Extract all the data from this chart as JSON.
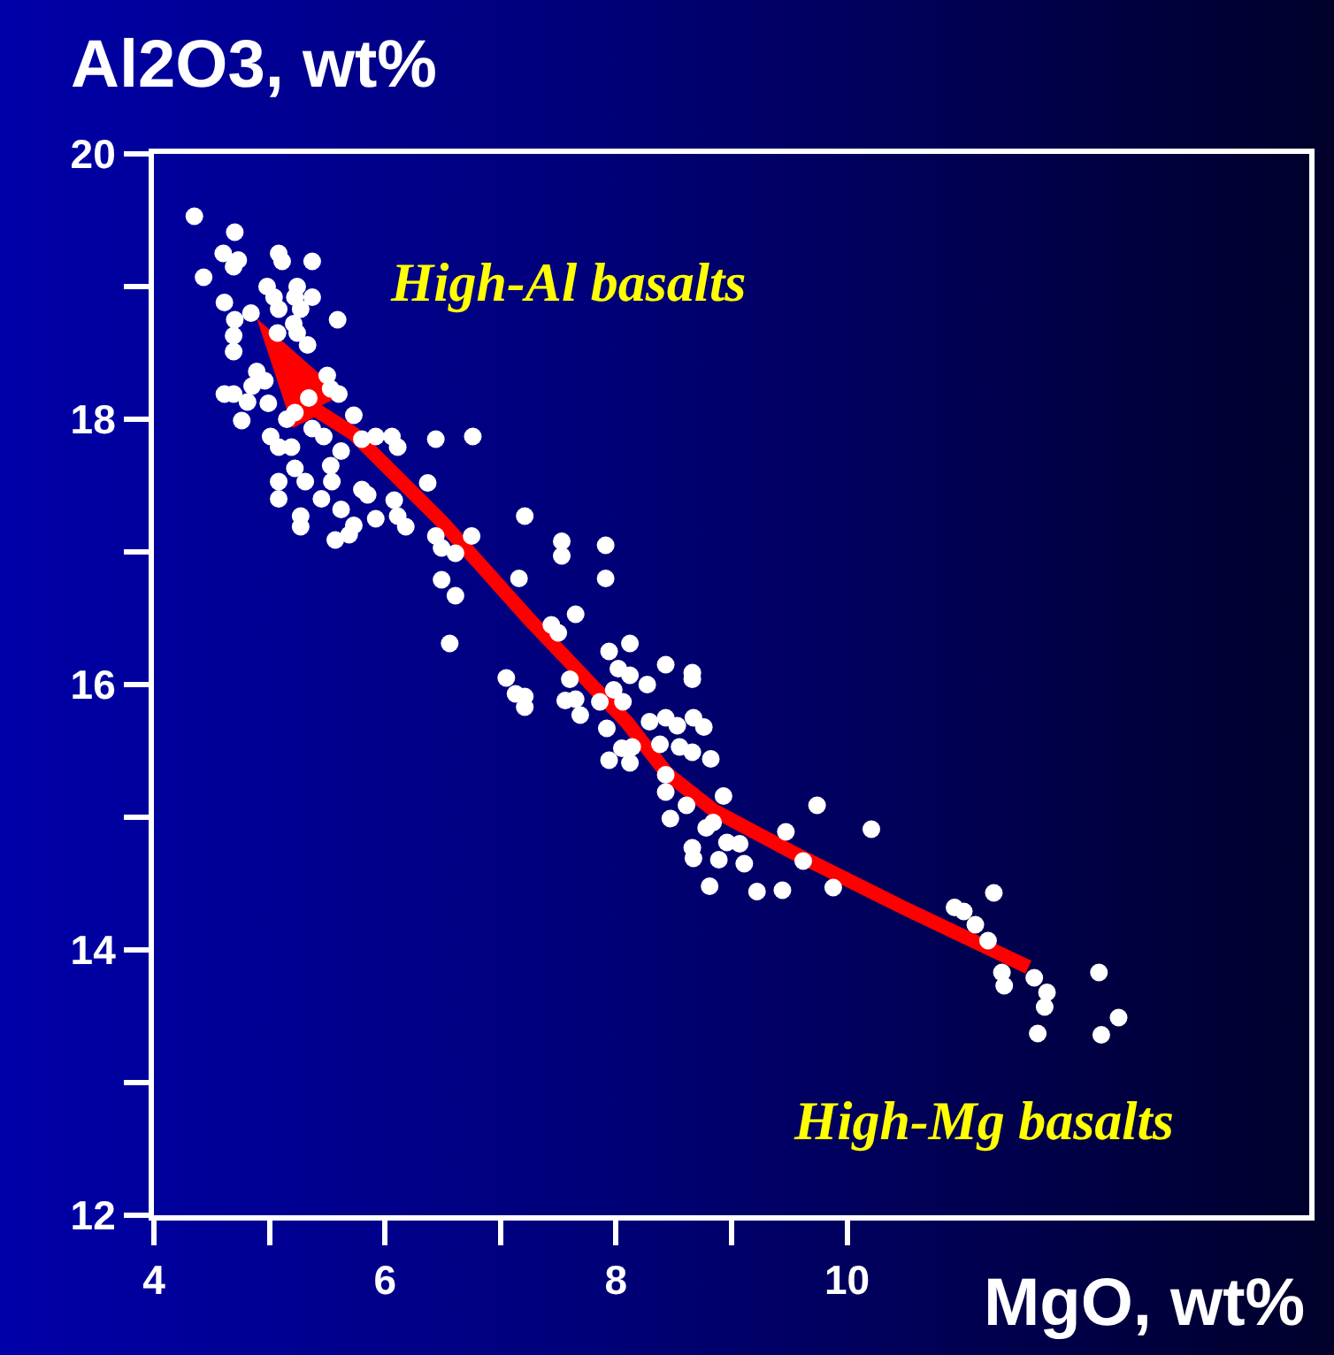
{
  "chart_data": {
    "type": "scatter",
    "xlabel": "MgO, wt%",
    "ylabel": "Al2O3, wt%",
    "annotations": [
      "High-Al basalts",
      "High-Mg basalts"
    ],
    "xlim": [
      4,
      14
    ],
    "ylim": [
      12,
      20
    ],
    "xticks": [
      4,
      {
        "value": 5,
        "label": null
      },
      6,
      {
        "value": 7,
        "label": null
      },
      8,
      {
        "value": 9,
        "label": null
      },
      10
    ],
    "yticks": [
      12,
      {
        "value": 13,
        "label": null
      },
      14,
      {
        "value": 15,
        "label": null
      },
      16,
      {
        "value": 17,
        "label": null
      },
      18,
      {
        "value": 19,
        "label": null
      },
      20
    ],
    "grid": false,
    "marker": "circle",
    "series": [
      {
        "color": "#ffffff",
        "x": [
          4.35,
          4.7,
          4.6,
          4.73,
          4.69,
          5.08,
          5.11,
          5.37,
          4.43,
          4.98,
          5.24,
          5.37,
          5.22,
          4.61,
          5.04,
          5.08,
          4.84,
          5.27,
          5.59,
          4.7,
          5.21,
          4.69,
          5.07,
          5.24,
          5.33,
          4.69,
          4.89,
          5.5,
          4.96,
          4.85,
          5.53,
          4.61,
          4.69,
          4.81,
          5.6,
          4.99,
          5.34,
          5.22,
          5.73,
          4.76,
          5.15,
          5.37,
          5.01,
          5.47,
          5.92,
          6.06,
          6.44,
          6.76,
          5.8,
          5.08,
          5.19,
          6.11,
          5.62,
          5.53,
          5.22,
          5.31,
          6.37,
          5.08,
          5.54,
          5.8,
          5.08,
          5.45,
          5.85,
          6.08,
          5.62,
          5.27,
          6.11,
          7.21,
          5.92,
          5.73,
          5.27,
          6.18,
          5.69,
          5.57,
          6.75,
          6.44,
          6.49,
          6.61,
          6.49,
          6.61,
          7.16,
          7.53,
          7.53,
          7.91,
          7.91,
          6.56,
          7.65,
          7.44,
          7.5,
          7.94,
          8.12,
          8.43,
          8.66,
          8.66,
          8.02,
          8.12,
          8.27,
          7.05,
          7.13,
          7.21,
          7.21,
          7.6,
          7.56,
          7.65,
          7.98,
          7.86,
          8.06,
          7.69,
          8.29,
          8.43,
          8.53,
          8.67,
          8.76,
          7.92,
          8.38,
          8.55,
          8.66,
          8.82,
          8.05,
          8.14,
          7.94,
          8.12,
          8.43,
          8.43,
          8.61,
          8.93,
          8.47,
          9.74,
          9.47,
          10.21,
          8.78,
          8.84,
          8.96,
          9.07,
          8.66,
          8.67,
          8.89,
          9.11,
          8.81,
          9.22,
          9.44,
          9.62,
          9.88,
          11.27,
          10.93,
          11.01,
          11.11,
          11.22,
          11.34,
          11.36,
          11.62,
          11.73,
          11.71,
          11.65,
          12.18,
          12.35,
          12.2
        ],
        "values": [
          19.53,
          19.41,
          19.25,
          19.2,
          19.15,
          19.25,
          19.19,
          19.19,
          19.07,
          19.0,
          19.0,
          18.92,
          18.92,
          18.88,
          18.92,
          18.83,
          18.8,
          18.83,
          18.75,
          18.75,
          18.72,
          18.63,
          18.65,
          18.65,
          18.56,
          18.51,
          18.36,
          18.33,
          18.29,
          18.25,
          18.23,
          18.19,
          18.19,
          18.13,
          18.19,
          18.12,
          18.16,
          18.05,
          18.03,
          17.99,
          18.0,
          17.93,
          17.87,
          17.87,
          17.87,
          17.87,
          17.85,
          17.87,
          17.85,
          17.79,
          17.79,
          17.79,
          17.76,
          17.65,
          17.63,
          17.53,
          17.52,
          17.53,
          17.53,
          17.47,
          17.4,
          17.4,
          17.43,
          17.39,
          17.32,
          17.27,
          17.27,
          17.27,
          17.25,
          17.2,
          17.19,
          17.19,
          17.13,
          17.09,
          17.12,
          17.12,
          17.03,
          16.99,
          16.79,
          16.67,
          16.8,
          17.08,
          16.97,
          17.05,
          16.8,
          16.31,
          16.53,
          16.45,
          16.39,
          16.25,
          16.31,
          16.15,
          16.09,
          16.04,
          16.12,
          16.07,
          16.0,
          16.05,
          15.93,
          15.91,
          15.83,
          16.04,
          15.88,
          15.89,
          15.96,
          15.87,
          15.87,
          15.77,
          15.72,
          15.75,
          15.69,
          15.75,
          15.68,
          15.67,
          15.55,
          15.53,
          15.49,
          15.44,
          15.52,
          15.53,
          15.43,
          15.41,
          15.32,
          15.19,
          15.09,
          15.16,
          14.99,
          15.09,
          14.89,
          14.91,
          14.92,
          14.96,
          14.81,
          14.8,
          14.77,
          14.69,
          14.68,
          14.65,
          14.48,
          14.44,
          14.45,
          14.67,
          14.47,
          14.43,
          14.32,
          14.29,
          14.19,
          14.07,
          13.83,
          13.73,
          13.79,
          13.68,
          13.57,
          13.37,
          13.83,
          13.49,
          13.36
        ]
      }
    ]
  }
}
